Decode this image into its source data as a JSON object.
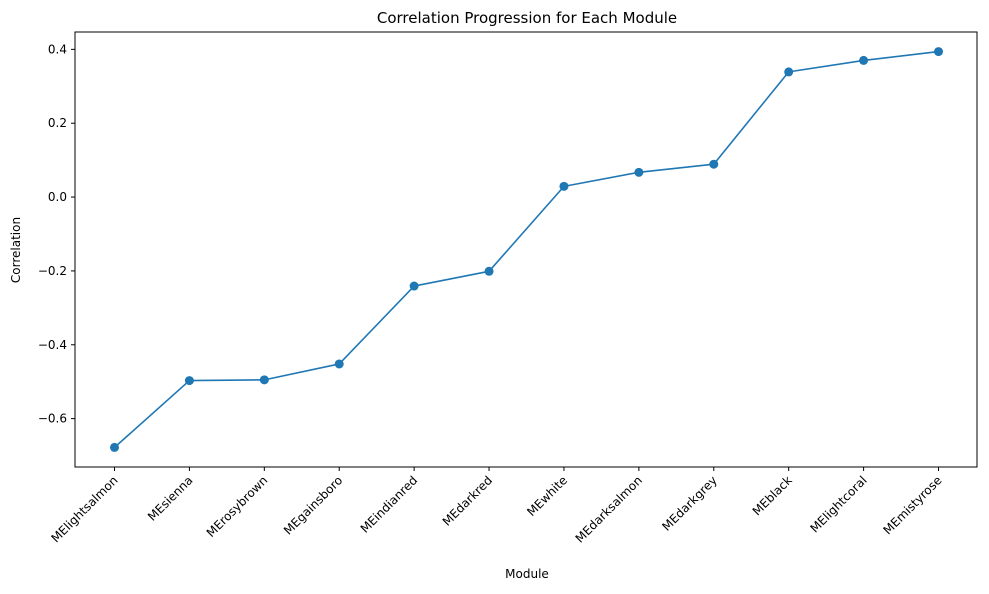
{
  "chart_data": {
    "type": "line",
    "title": "Correlation Progression for Each Module",
    "xlabel": "Module",
    "ylabel": "Correlation",
    "categories": [
      "MElightsalmon",
      "MEsienna",
      "MErosybrown",
      "MEgainsboro",
      "MEindianred",
      "MEdarkred",
      "MEwhite",
      "MEdarksalmon",
      "MEdarkgrey",
      "MEblack",
      "MElightcoral",
      "MEmistyrose"
    ],
    "series": [
      {
        "values": [
          -0.678,
          -0.497,
          -0.495,
          -0.452,
          -0.241,
          -0.201,
          0.029,
          0.067,
          0.089,
          0.339,
          0.37,
          0.394
        ],
        "color": "#1f77b4",
        "marker": "circle"
      }
    ],
    "yticks": [
      -0.6,
      -0.4,
      -0.2,
      0.0,
      0.2,
      0.4
    ],
    "ytick_labels": [
      "−0.6",
      "−0.4",
      "−0.2",
      "0.0",
      "0.2",
      "0.4"
    ],
    "ylim": [
      -0.731,
      0.447
    ],
    "grid": false,
    "legend": "none"
  }
}
